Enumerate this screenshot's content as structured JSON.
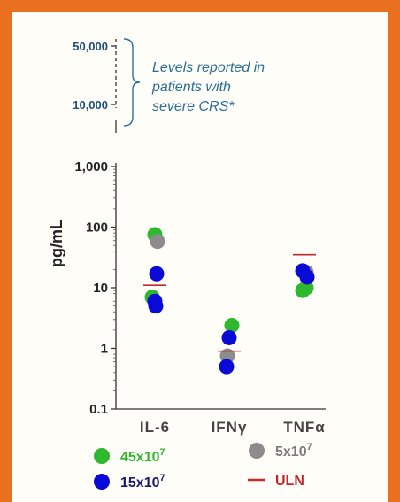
{
  "chart_data": {
    "type": "scatter",
    "ylabel": "pg/mL",
    "y_scale": "log",
    "ylim": [
      0.1,
      100000
    ],
    "y_ticks": [
      {
        "value": 0.1,
        "label": "0.1"
      },
      {
        "value": 1,
        "label": "1"
      },
      {
        "value": 10,
        "label": "10"
      },
      {
        "value": 100,
        "label": "100"
      },
      {
        "value": 1000,
        "label": "1,000"
      },
      {
        "value": 10000,
        "label": "10,000"
      },
      {
        "value": 50000,
        "label": "50,000"
      }
    ],
    "categories": [
      "IL-6",
      "IFNγ",
      "TNFα"
    ],
    "annotation": {
      "text_lines": [
        "Levels reported in",
        "patients with",
        "severe CRS*"
      ],
      "range": [
        10000,
        50000
      ]
    },
    "series": [
      {
        "name": "45x10",
        "sup": "7",
        "color": "#2db82d",
        "points": [
          {
            "category": "IL-6",
            "y": 75
          },
          {
            "category": "IL-6",
            "y": 7
          },
          {
            "category": "IFNγ",
            "y": 2.4
          },
          {
            "category": "TNFα",
            "y": 9
          },
          {
            "category": "TNFα",
            "y": 10
          }
        ]
      },
      {
        "name": "5x10",
        "sup": "7",
        "color": "#8c8c8c",
        "points": [
          {
            "category": "IL-6",
            "y": 58
          },
          {
            "category": "IFNγ",
            "y": 0.75
          },
          {
            "category": "TNFα",
            "y": 18
          }
        ]
      },
      {
        "name": "15x10",
        "sup": "7",
        "color": "#0a0ad6",
        "points": [
          {
            "category": "IL-6",
            "y": 17
          },
          {
            "category": "IL-6",
            "y": 6
          },
          {
            "category": "IL-6",
            "y": 5
          },
          {
            "category": "IFNγ",
            "y": 1.5
          },
          {
            "category": "IFNγ",
            "y": 0.5
          },
          {
            "category": "TNFα",
            "y": 15
          },
          {
            "category": "TNFα",
            "y": 19
          }
        ]
      }
    ],
    "uln": {
      "name": "ULN",
      "color": "#c0282d",
      "values": [
        {
          "category": "IL-6",
          "y": 11
        },
        {
          "category": "IFNγ",
          "y": 0.9
        },
        {
          "category": "TNFα",
          "y": 35
        }
      ]
    },
    "legend": [
      {
        "label": "45x10",
        "sup": "7",
        "marker": "circle",
        "color": "#2db82d",
        "text_color": "#2db82d"
      },
      {
        "label": "5x10",
        "sup": "7",
        "marker": "circle",
        "color": "#8c8c8c",
        "text_color": "#7a7a7a"
      },
      {
        "label": "15x10",
        "sup": "7",
        "marker": "circle",
        "color": "#0a0ad6",
        "text_color": "#1a1a6e"
      },
      {
        "label": "ULN",
        "sup": "",
        "marker": "line",
        "color": "#c0282d",
        "text_color": "#c0282d"
      }
    ]
  }
}
